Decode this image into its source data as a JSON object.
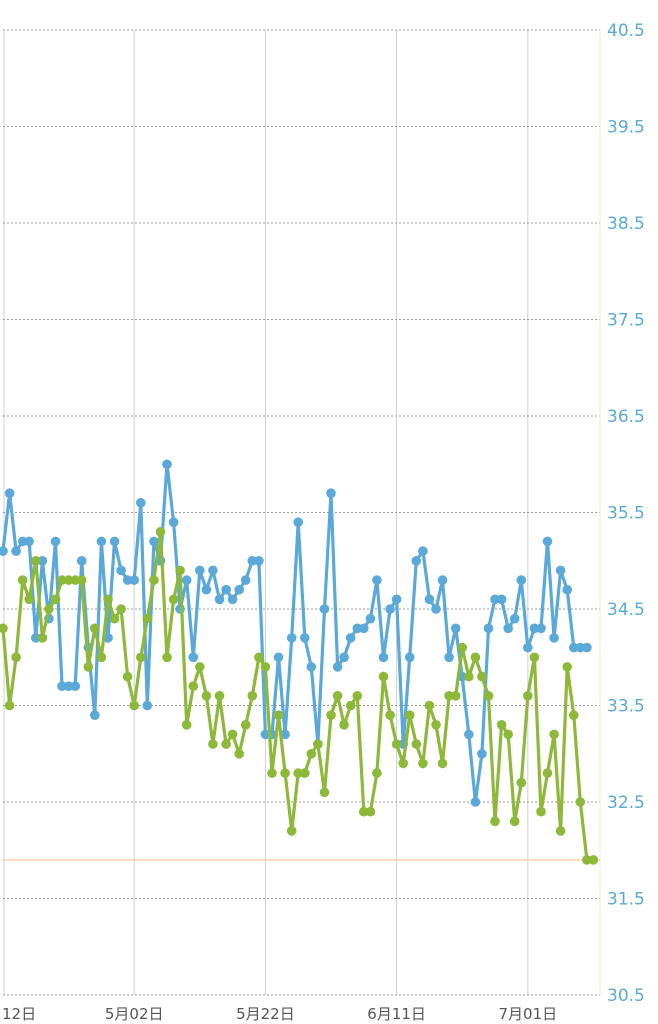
{
  "chart_data": {
    "type": "line",
    "grid": true,
    "legend": "none",
    "ylim": [
      30.5,
      40.5
    ],
    "yticks": [
      "30.5",
      "31.5",
      "32.5",
      "33.5",
      "34.5",
      "35.5",
      "36.5",
      "37.5",
      "38.5",
      "39.5",
      "40.5"
    ],
    "x_range": [
      0,
      91
    ],
    "x_ticks": [
      {
        "label": "12日",
        "x": 0
      },
      {
        "label": "5月02日",
        "x": 20
      },
      {
        "label": "5月22日",
        "x": 40
      },
      {
        "label": "6月11日",
        "x": 60
      },
      {
        "label": "7月01日",
        "x": 80
      }
    ],
    "reference_line": {
      "y": 31.9,
      "color": "#f6c8a0"
    },
    "series": [
      {
        "color": "#5aa9d8",
        "x": [
          0,
          1,
          2,
          3,
          4,
          5,
          6,
          7,
          8,
          9,
          10,
          11,
          12,
          13,
          14,
          15,
          16,
          17,
          18,
          19,
          20,
          21,
          22,
          23,
          24,
          25,
          26,
          27,
          28,
          29,
          30,
          31,
          32,
          33,
          34,
          35,
          36,
          37,
          38,
          39,
          40,
          41,
          42,
          43,
          44,
          45,
          46,
          47,
          48,
          49,
          50,
          51,
          52,
          53,
          54,
          55,
          56,
          57,
          58,
          59,
          60,
          61,
          62,
          63,
          64,
          65,
          66,
          67,
          68,
          69,
          70,
          71,
          72,
          73,
          74,
          75,
          76,
          77,
          78,
          79,
          80,
          81,
          82,
          83,
          84,
          85,
          86,
          87,
          88,
          89
        ],
        "values": [
          35.1,
          35.7,
          35.1,
          35.2,
          35.2,
          34.2,
          35.0,
          34.4,
          35.2,
          33.7,
          33.7,
          33.7,
          35.0,
          34.1,
          33.4,
          35.2,
          34.2,
          35.2,
          34.9,
          34.8,
          34.8,
          35.6,
          33.5,
          35.2,
          35.0,
          36.0,
          35.4,
          34.5,
          34.8,
          34.0,
          34.9,
          34.7,
          34.9,
          34.6,
          34.7,
          34.6,
          34.7,
          34.8,
          35.0,
          35.0,
          33.2,
          33.2,
          34.0,
          33.2,
          34.2,
          35.4,
          34.2,
          33.9,
          33.1,
          34.5,
          35.7,
          33.9,
          34.0,
          34.2,
          34.3,
          34.3,
          34.4,
          34.8,
          34.0,
          34.5,
          34.6,
          33.1,
          34.0,
          35.0,
          35.1,
          34.6,
          34.5,
          34.8,
          34.0,
          34.3,
          33.8,
          33.2,
          32.5,
          33.0,
          34.3,
          34.6,
          34.6,
          34.3,
          34.4,
          34.8,
          34.1,
          34.3,
          34.3,
          35.2,
          34.2,
          34.9,
          34.7,
          34.1,
          34.1,
          34.1
        ]
      },
      {
        "color": "#8db83a",
        "x": [
          0,
          1,
          2,
          3,
          4,
          5,
          6,
          7,
          8,
          9,
          10,
          11,
          12,
          13,
          14,
          15,
          16,
          17,
          18,
          19,
          20,
          21,
          22,
          23,
          24,
          25,
          26,
          27,
          28,
          29,
          30,
          31,
          32,
          33,
          34,
          35,
          36,
          37,
          38,
          39,
          40,
          41,
          42,
          43,
          44,
          45,
          46,
          47,
          48,
          49,
          50,
          51,
          52,
          53,
          54,
          55,
          56,
          57,
          58,
          59,
          60,
          61,
          62,
          63,
          64,
          65,
          66,
          67,
          68,
          69,
          70,
          71,
          72,
          73,
          74,
          75,
          76,
          77,
          78,
          79,
          80,
          81,
          82,
          83,
          84,
          85,
          86,
          87,
          88,
          89,
          90
        ],
        "values": [
          34.3,
          33.5,
          34.0,
          34.8,
          34.6,
          35.0,
          34.2,
          34.5,
          34.6,
          34.8,
          34.8,
          34.8,
          34.8,
          33.9,
          34.3,
          34.0,
          34.6,
          34.4,
          34.5,
          33.8,
          33.5,
          34.0,
          34.4,
          34.8,
          35.3,
          34.0,
          34.6,
          34.9,
          33.3,
          33.7,
          33.9,
          33.6,
          33.1,
          33.6,
          33.1,
          33.2,
          33.0,
          33.3,
          33.6,
          34.0,
          33.9,
          32.8,
          33.4,
          32.8,
          32.2,
          32.8,
          32.8,
          33.0,
          33.1,
          32.6,
          33.4,
          33.6,
          33.3,
          33.5,
          33.6,
          32.4,
          32.4,
          32.8,
          33.8,
          33.4,
          33.1,
          32.9,
          33.4,
          33.1,
          32.9,
          33.5,
          33.3,
          32.9,
          33.6,
          33.6,
          34.1,
          33.8,
          34.0,
          33.8,
          33.6,
          32.3,
          33.3,
          33.2,
          32.3,
          32.7,
          33.6,
          34.0,
          32.4,
          32.8,
          33.2,
          32.2,
          33.9,
          33.4,
          32.5,
          31.9,
          31.9
        ]
      }
    ]
  }
}
